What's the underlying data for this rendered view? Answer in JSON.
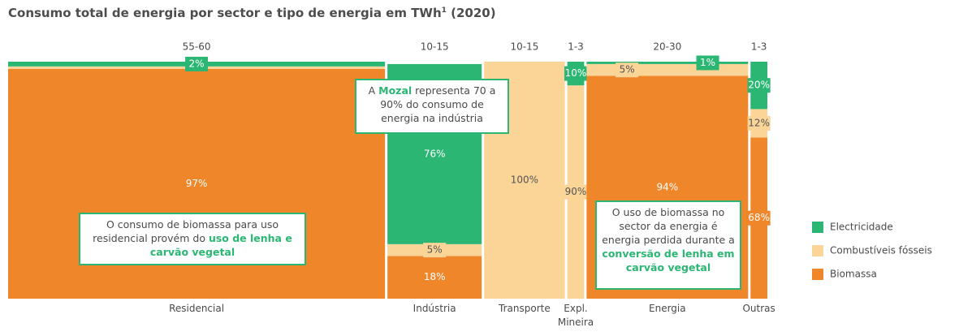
{
  "chart_data": {
    "type": "marimekko",
    "title": "Consumo total de energia por sector e tipo de energia em TWh",
    "title_sup": "1",
    "title_suffix": " (2020)",
    "categories": [
      "Residencial",
      "Indústria",
      "Transporte",
      "Expl. Mineira",
      "Energia",
      "Outras"
    ],
    "width_labels": [
      "55-60",
      "10-15",
      "10-15",
      "1-3",
      "20-30",
      "1-3"
    ],
    "widths": [
      56,
      14,
      12,
      2.5,
      24,
      2.5
    ],
    "ylim": [
      0,
      100
    ],
    "series": [
      {
        "name": "Biomassa",
        "color": "#f0862a",
        "values": [
          97,
          18,
          0,
          0,
          94,
          68
        ],
        "value_labels": [
          "97%",
          "18%",
          null,
          null,
          "94%",
          "68%"
        ]
      },
      {
        "name": "Combustíveis fósseis",
        "color": "#fad597",
        "values": [
          1,
          5,
          100,
          90,
          5,
          12
        ],
        "value_labels": [
          null,
          "5%",
          "100%",
          "90%",
          "5%",
          "12%"
        ]
      },
      {
        "name": "Electricidade",
        "color": "#2bb673",
        "values": [
          2,
          76,
          0,
          10,
          1,
          20
        ],
        "value_labels": [
          "2%",
          "76%",
          null,
          "10%",
          "1%",
          "20%"
        ]
      }
    ],
    "annotations": [
      {
        "parts": [
          "A ",
          "Mozal",
          " representa 70 a 90% do consumo de energia na indústria"
        ]
      },
      {
        "parts": [
          "O consumo de biomassa para uso residencial provém do ",
          "uso de lenha e carvão vegetal"
        ]
      },
      {
        "parts": [
          "O uso de biomassa no sector da energia é energia perdida durante a ",
          "conversão de lenha em carvão vegetal"
        ]
      }
    ]
  }
}
